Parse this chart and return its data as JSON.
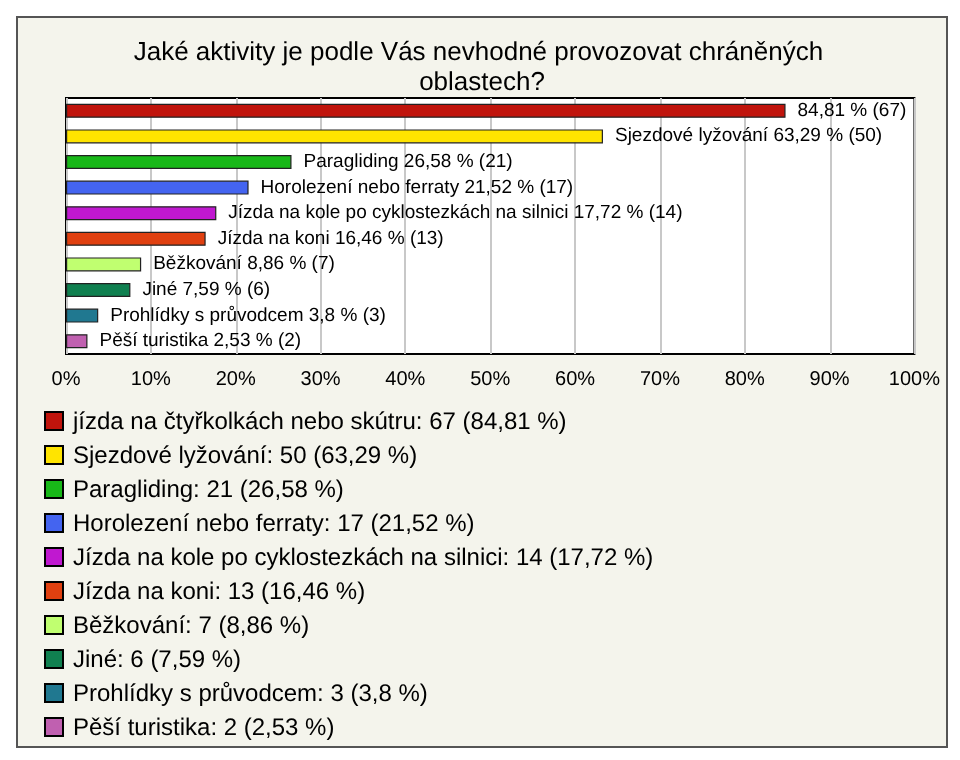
{
  "chart_data": {
    "type": "bar",
    "orientation": "horizontal",
    "stacked": true,
    "title": "Jaké aktivity je podle Vás nevhodné provozovat chráněných oblastech?",
    "categories": [
      null,
      null,
      null,
      null,
      null,
      null,
      null,
      null,
      null,
      null
    ],
    "series": [
      {
        "name": "jízda na čtyřkolkách nebo skútru: 67 (84,81 %)",
        "color": "#c0140c",
        "values": [
          84.81,
          null,
          null,
          null,
          null,
          null,
          null,
          null,
          null,
          null
        ],
        "value_labels": [
          "84,81 % (67)",
          null,
          null,
          null,
          null,
          null,
          null,
          null,
          null,
          null
        ]
      },
      {
        "name": "Sjezdové lyžování: 50 (63,29 %)",
        "color": "#ffe400",
        "values": [
          null,
          63.29,
          null,
          null,
          null,
          null,
          null,
          null,
          null,
          null
        ],
        "value_labels": [
          null,
          "Sjezdové lyžování 63,29 % (50)",
          null,
          null,
          null,
          null,
          null,
          null,
          null,
          null
        ]
      },
      {
        "name": "Paragliding: 21 (26,58 %)",
        "color": "#18b818",
        "values": [
          null,
          null,
          26.58,
          null,
          null,
          null,
          null,
          null,
          null,
          null
        ],
        "value_labels": [
          null,
          null,
          "Paragliding 26,58 % (21)",
          null,
          null,
          null,
          null,
          null,
          null,
          null
        ]
      },
      {
        "name": "Horolezení nebo ferraty: 17 (21,52 %)",
        "color": "#4464f0",
        "values": [
          null,
          null,
          null,
          21.52,
          null,
          null,
          null,
          null,
          null,
          null
        ],
        "value_labels": [
          null,
          null,
          null,
          "Horolezení nebo ferraty 21,52 % (17)",
          null,
          null,
          null,
          null,
          null,
          null
        ]
      },
      {
        "name": "Jízda na kole po cyklostezkách na silnici: 14 (17,72 %)",
        "color": "#c018d0",
        "values": [
          null,
          null,
          null,
          null,
          17.72,
          null,
          null,
          null,
          null,
          null
        ],
        "value_labels": [
          null,
          null,
          null,
          null,
          "Jízda na kole po cyklostezkách na silnici 17,72 % (14)",
          null,
          null,
          null,
          null,
          null
        ]
      },
      {
        "name": "Jízda na koni: 13 (16,46 %)",
        "color": "#e04010",
        "values": [
          null,
          null,
          null,
          null,
          null,
          16.46,
          null,
          null,
          null,
          null
        ],
        "value_labels": [
          null,
          null,
          null,
          null,
          null,
          "Jízda na koni 16,46 % (13)",
          null,
          null,
          null,
          null
        ]
      },
      {
        "name": "Běžkování: 7 (8,86 %)",
        "color": "#c0ff70",
        "values": [
          null,
          null,
          null,
          null,
          null,
          null,
          8.86,
          null,
          null,
          null
        ],
        "value_labels": [
          null,
          null,
          null,
          null,
          null,
          null,
          "Běžkování 8,86 % (7)",
          null,
          null,
          null
        ]
      },
      {
        "name": "Jiné: 6 (7,59 %)",
        "color": "#108050",
        "values": [
          null,
          null,
          null,
          null,
          null,
          null,
          null,
          7.59,
          null,
          null
        ],
        "value_labels": [
          null,
          null,
          null,
          null,
          null,
          null,
          null,
          "Jiné 7,59 % (6)",
          null,
          null
        ]
      },
      {
        "name": "Prohlídky s průvodcem: 3 (3,8 %)",
        "color": "#207890",
        "values": [
          null,
          null,
          null,
          null,
          null,
          null,
          null,
          null,
          3.8,
          null
        ],
        "value_labels": [
          null,
          null,
          null,
          null,
          null,
          null,
          null,
          null,
          "Prohlídky s průvodcem 3,8 % (3)",
          null
        ]
      },
      {
        "name": "Pěší turistika: 2 (2,53 %)",
        "color": "#c060b0",
        "values": [
          null,
          null,
          null,
          null,
          null,
          null,
          null,
          null,
          null,
          2.53
        ],
        "value_labels": [
          null,
          null,
          null,
          null,
          null,
          null,
          null,
          null,
          null,
          "Pěší turistika 2,53 % (2)"
        ]
      }
    ],
    "xlim": [
      0,
      100
    ],
    "xticks": [
      {
        "value": 0,
        "label": "0%"
      },
      {
        "value": 10,
        "label": "10%"
      },
      {
        "value": 20,
        "label": "20%"
      },
      {
        "value": 30,
        "label": "30%"
      },
      {
        "value": 40,
        "label": "40%"
      },
      {
        "value": 50,
        "label": "50%"
      },
      {
        "value": 60,
        "label": "60%"
      },
      {
        "value": 70,
        "label": "70%"
      },
      {
        "value": 80,
        "label": "80%"
      },
      {
        "value": 90,
        "label": "90%"
      },
      {
        "value": 100,
        "label": "100%"
      }
    ],
    "grid": "x",
    "legend": "bottom",
    "tick_labels": "x"
  }
}
